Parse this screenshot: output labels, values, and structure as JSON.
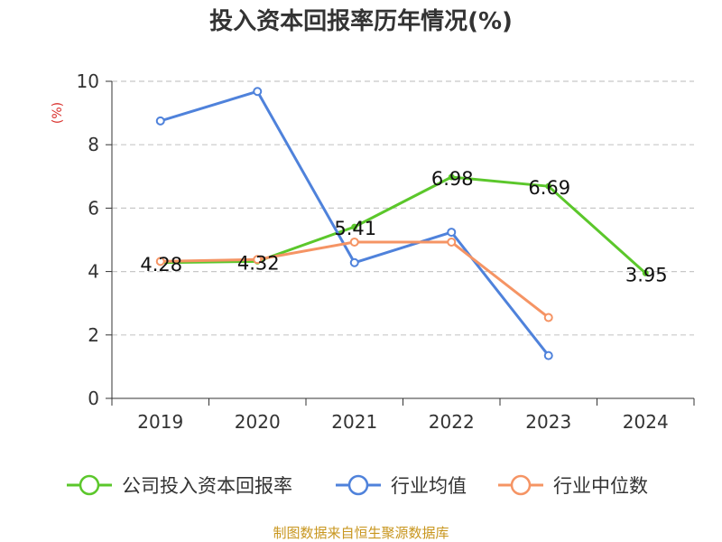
{
  "chart_data": {
    "type": "line",
    "title": "投入资本回报率历年情况(%)",
    "ylabel": "(%)",
    "xlabel": "",
    "categories": [
      "2019",
      "2020",
      "2021",
      "2022",
      "2023",
      "2024"
    ],
    "ylim": [
      0,
      10
    ],
    "yticks": [
      0,
      2,
      4,
      6,
      8,
      10
    ],
    "grid": "horizontal-dashed",
    "legend_position": "bottom",
    "series": [
      {
        "name": "公司投入资本回报率",
        "color": "#5bc72b",
        "values": [
          4.28,
          4.32,
          5.41,
          6.98,
          6.69,
          3.95
        ],
        "labels": [
          "4.28",
          "4.32",
          "5.41",
          "6.98",
          "6.69",
          "3.95"
        ],
        "show_labels": true
      },
      {
        "name": "行业均值",
        "color": "#4f82db",
        "values": [
          8.75,
          9.68,
          4.28,
          5.24,
          1.35,
          null
        ],
        "show_labels": false
      },
      {
        "name": "行业中位数",
        "color": "#f59464",
        "values": [
          4.32,
          4.38,
          4.93,
          4.93,
          2.55,
          null
        ],
        "show_labels": false
      }
    ]
  },
  "source": {
    "text": "制图数据来自恒生聚源数据库",
    "color": "#c8961e"
  },
  "ylabel_color": "#d9302c"
}
